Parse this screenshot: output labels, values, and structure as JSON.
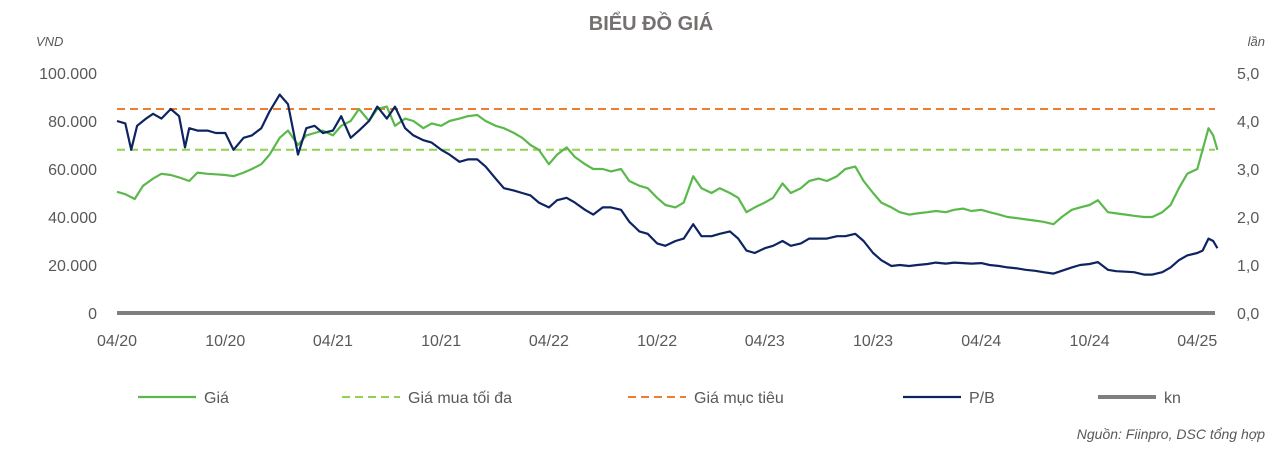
{
  "chart_data": {
    "type": "line",
    "title": "BIỂU ĐỒ GIÁ",
    "ylabel_left": "VND",
    "ylabel_right": "lần",
    "ylim_left": [
      0,
      100000
    ],
    "ylim_right": [
      0,
      5
    ],
    "y_ticks_left": [
      "0",
      "20.000",
      "40.000",
      "60.000",
      "80.000",
      "100.000"
    ],
    "y_ticks_right": [
      "0,0",
      "1,0",
      "2,0",
      "3,0",
      "4,0",
      "5,0"
    ],
    "x_ticks": [
      "04/20",
      "10/20",
      "04/21",
      "10/21",
      "04/22",
      "10/22",
      "04/23",
      "10/23",
      "04/24",
      "10/24",
      "04/25"
    ],
    "x_start": "2020-04",
    "x_end": "2025-05",
    "grid": false,
    "legend_position": "bottom",
    "series": [
      {
        "name": "Giá",
        "axis": "left",
        "color": "#5BB94C",
        "style": "solid",
        "points": [
          [
            "2020-04-01",
            50500
          ],
          [
            "2020-04-15",
            49500
          ],
          [
            "2020-05-01",
            47500
          ],
          [
            "2020-05-15",
            53000
          ],
          [
            "2020-06-01",
            56000
          ],
          [
            "2020-06-15",
            58000
          ],
          [
            "2020-07-01",
            57500
          ],
          [
            "2020-07-15",
            56500
          ],
          [
            "2020-08-01",
            55000
          ],
          [
            "2020-08-15",
            58500
          ],
          [
            "2020-09-01",
            58000
          ],
          [
            "2020-09-15",
            57800
          ],
          [
            "2020-10-01",
            57500
          ],
          [
            "2020-10-15",
            57000
          ],
          [
            "2020-11-01",
            58500
          ],
          [
            "2020-11-15",
            60000
          ],
          [
            "2020-12-01",
            62000
          ],
          [
            "2020-12-15",
            66000
          ],
          [
            "2021-01-01",
            73000
          ],
          [
            "2021-01-15",
            76000
          ],
          [
            "2021-02-01",
            70000
          ],
          [
            "2021-02-15",
            74000
          ],
          [
            "2021-03-01",
            75000
          ],
          [
            "2021-03-15",
            76000
          ],
          [
            "2021-04-01",
            74000
          ],
          [
            "2021-04-15",
            78000
          ],
          [
            "2021-05-01",
            80000
          ],
          [
            "2021-05-15",
            85000
          ],
          [
            "2021-06-01",
            80000
          ],
          [
            "2021-06-15",
            85000
          ],
          [
            "2021-07-01",
            86000
          ],
          [
            "2021-07-15",
            78000
          ],
          [
            "2021-08-01",
            81000
          ],
          [
            "2021-08-15",
            80000
          ],
          [
            "2021-09-01",
            77000
          ],
          [
            "2021-09-15",
            79000
          ],
          [
            "2021-10-01",
            78000
          ],
          [
            "2021-10-15",
            80000
          ],
          [
            "2021-11-01",
            81000
          ],
          [
            "2021-11-15",
            82000
          ],
          [
            "2021-12-01",
            82500
          ],
          [
            "2021-12-15",
            80000
          ],
          [
            "2022-01-01",
            78000
          ],
          [
            "2022-01-15",
            77000
          ],
          [
            "2022-02-01",
            75000
          ],
          [
            "2022-02-15",
            73000
          ],
          [
            "2022-03-01",
            70000
          ],
          [
            "2022-03-15",
            68000
          ],
          [
            "2022-04-01",
            62000
          ],
          [
            "2022-04-15",
            66000
          ],
          [
            "2022-05-01",
            69000
          ],
          [
            "2022-05-15",
            65000
          ],
          [
            "2022-06-01",
            62000
          ],
          [
            "2022-06-15",
            60000
          ],
          [
            "2022-07-01",
            60000
          ],
          [
            "2022-07-15",
            59000
          ],
          [
            "2022-08-01",
            60000
          ],
          [
            "2022-08-15",
            55000
          ],
          [
            "2022-09-01",
            53000
          ],
          [
            "2022-09-15",
            52000
          ],
          [
            "2022-10-01",
            48000
          ],
          [
            "2022-10-15",
            45000
          ],
          [
            "2022-11-01",
            44000
          ],
          [
            "2022-11-15",
            46000
          ],
          [
            "2022-12-01",
            57000
          ],
          [
            "2022-12-15",
            52000
          ],
          [
            "2023-01-01",
            50000
          ],
          [
            "2023-01-15",
            52000
          ],
          [
            "2023-02-01",
            50000
          ],
          [
            "2023-02-15",
            48000
          ],
          [
            "2023-03-01",
            42000
          ],
          [
            "2023-03-15",
            44000
          ],
          [
            "2023-04-01",
            46000
          ],
          [
            "2023-04-15",
            48000
          ],
          [
            "2023-05-01",
            54000
          ],
          [
            "2023-05-15",
            50000
          ],
          [
            "2023-06-01",
            52000
          ],
          [
            "2023-06-15",
            55000
          ],
          [
            "2023-07-01",
            56000
          ],
          [
            "2023-07-15",
            55000
          ],
          [
            "2023-08-01",
            57000
          ],
          [
            "2023-08-15",
            60000
          ],
          [
            "2023-09-01",
            61000
          ],
          [
            "2023-09-15",
            55000
          ],
          [
            "2023-10-01",
            50000
          ],
          [
            "2023-10-15",
            46000
          ],
          [
            "2023-11-01",
            44000
          ],
          [
            "2023-11-15",
            42000
          ],
          [
            "2023-12-01",
            41000
          ],
          [
            "2023-12-15",
            41500
          ],
          [
            "2024-01-01",
            42000
          ],
          [
            "2024-01-15",
            42500
          ],
          [
            "2024-02-01",
            42000
          ],
          [
            "2024-02-15",
            43000
          ],
          [
            "2024-03-01",
            43500
          ],
          [
            "2024-03-15",
            42500
          ],
          [
            "2024-04-01",
            43000
          ],
          [
            "2024-04-15",
            42000
          ],
          [
            "2024-05-01",
            41000
          ],
          [
            "2024-05-15",
            40000
          ],
          [
            "2024-06-01",
            39500
          ],
          [
            "2024-06-15",
            39000
          ],
          [
            "2024-07-01",
            38500
          ],
          [
            "2024-07-15",
            38000
          ],
          [
            "2024-08-01",
            37000
          ],
          [
            "2024-08-15",
            40000
          ],
          [
            "2024-09-01",
            43000
          ],
          [
            "2024-09-15",
            44000
          ],
          [
            "2024-10-01",
            45000
          ],
          [
            "2024-10-15",
            47000
          ],
          [
            "2024-11-01",
            42000
          ],
          [
            "2024-11-15",
            41500
          ],
          [
            "2024-12-01",
            41000
          ],
          [
            "2024-12-15",
            40500
          ],
          [
            "2025-01-01",
            40000
          ],
          [
            "2025-01-15",
            40000
          ],
          [
            "2025-02-01",
            42000
          ],
          [
            "2025-02-15",
            45000
          ],
          [
            "2025-03-01",
            52000
          ],
          [
            "2025-03-15",
            58000
          ],
          [
            "2025-04-01",
            60000
          ],
          [
            "2025-04-10",
            68000
          ],
          [
            "2025-04-20",
            77000
          ],
          [
            "2025-04-28",
            74000
          ],
          [
            "2025-05-05",
            68000
          ]
        ]
      },
      {
        "name": "Giá mua tối đa",
        "axis": "left",
        "color": "#92D050",
        "style": "dashed",
        "value": 68000
      },
      {
        "name": "Giá mục tiêu",
        "axis": "left",
        "color": "#ED7D31",
        "style": "dashed",
        "value": 85000
      },
      {
        "name": "P/B",
        "axis": "right",
        "color": "#0E2461",
        "style": "solid",
        "points": [
          [
            "2020-04-01",
            4.0
          ],
          [
            "2020-04-15",
            3.95
          ],
          [
            "2020-04-25",
            3.4
          ],
          [
            "2020-05-05",
            3.9
          ],
          [
            "2020-05-20",
            4.05
          ],
          [
            "2020-06-01",
            4.15
          ],
          [
            "2020-06-15",
            4.05
          ],
          [
            "2020-07-01",
            4.25
          ],
          [
            "2020-07-15",
            4.1
          ],
          [
            "2020-07-25",
            3.45
          ],
          [
            "2020-08-01",
            3.85
          ],
          [
            "2020-08-15",
            3.8
          ],
          [
            "2020-09-01",
            3.8
          ],
          [
            "2020-09-15",
            3.75
          ],
          [
            "2020-10-01",
            3.75
          ],
          [
            "2020-10-15",
            3.4
          ],
          [
            "2020-11-01",
            3.65
          ],
          [
            "2020-11-15",
            3.7
          ],
          [
            "2020-12-01",
            3.85
          ],
          [
            "2020-12-15",
            4.2
          ],
          [
            "2021-01-01",
            4.55
          ],
          [
            "2021-01-15",
            4.35
          ],
          [
            "2021-02-01",
            3.3
          ],
          [
            "2021-02-15",
            3.85
          ],
          [
            "2021-03-01",
            3.9
          ],
          [
            "2021-03-15",
            3.75
          ],
          [
            "2021-04-01",
            3.8
          ],
          [
            "2021-04-15",
            4.1
          ],
          [
            "2021-05-01",
            3.65
          ],
          [
            "2021-05-15",
            3.8
          ],
          [
            "2021-06-01",
            4.0
          ],
          [
            "2021-06-15",
            4.3
          ],
          [
            "2021-07-01",
            4.05
          ],
          [
            "2021-07-15",
            4.3
          ],
          [
            "2021-08-01",
            3.85
          ],
          [
            "2021-08-15",
            3.7
          ],
          [
            "2021-09-01",
            3.6
          ],
          [
            "2021-09-15",
            3.55
          ],
          [
            "2021-10-01",
            3.4
          ],
          [
            "2021-10-15",
            3.3
          ],
          [
            "2021-11-01",
            3.15
          ],
          [
            "2021-11-15",
            3.2
          ],
          [
            "2021-12-01",
            3.2
          ],
          [
            "2021-12-15",
            3.05
          ],
          [
            "2022-01-01",
            2.8
          ],
          [
            "2022-01-15",
            2.6
          ],
          [
            "2022-02-01",
            2.55
          ],
          [
            "2022-02-15",
            2.5
          ],
          [
            "2022-03-01",
            2.45
          ],
          [
            "2022-03-15",
            2.3
          ],
          [
            "2022-04-01",
            2.2
          ],
          [
            "2022-04-15",
            2.35
          ],
          [
            "2022-05-01",
            2.4
          ],
          [
            "2022-05-15",
            2.3
          ],
          [
            "2022-06-01",
            2.15
          ],
          [
            "2022-06-15",
            2.05
          ],
          [
            "2022-07-01",
            2.2
          ],
          [
            "2022-07-15",
            2.2
          ],
          [
            "2022-08-01",
            2.15
          ],
          [
            "2022-08-15",
            1.9
          ],
          [
            "2022-09-01",
            1.7
          ],
          [
            "2022-09-15",
            1.65
          ],
          [
            "2022-10-01",
            1.45
          ],
          [
            "2022-10-15",
            1.4
          ],
          [
            "2022-11-01",
            1.5
          ],
          [
            "2022-11-15",
            1.55
          ],
          [
            "2022-12-01",
            1.85
          ],
          [
            "2022-12-15",
            1.6
          ],
          [
            "2023-01-01",
            1.6
          ],
          [
            "2023-01-15",
            1.65
          ],
          [
            "2023-02-01",
            1.7
          ],
          [
            "2023-02-15",
            1.55
          ],
          [
            "2023-03-01",
            1.3
          ],
          [
            "2023-03-15",
            1.25
          ],
          [
            "2023-04-01",
            1.35
          ],
          [
            "2023-04-15",
            1.4
          ],
          [
            "2023-05-01",
            1.5
          ],
          [
            "2023-05-15",
            1.4
          ],
          [
            "2023-06-01",
            1.45
          ],
          [
            "2023-06-15",
            1.55
          ],
          [
            "2023-07-01",
            1.55
          ],
          [
            "2023-07-15",
            1.55
          ],
          [
            "2023-08-01",
            1.6
          ],
          [
            "2023-08-15",
            1.6
          ],
          [
            "2023-09-01",
            1.65
          ],
          [
            "2023-09-15",
            1.5
          ],
          [
            "2023-10-01",
            1.25
          ],
          [
            "2023-10-15",
            1.1
          ],
          [
            "2023-11-01",
            0.98
          ],
          [
            "2023-11-15",
            1.0
          ],
          [
            "2023-12-01",
            0.98
          ],
          [
            "2023-12-15",
            1.0
          ],
          [
            "2024-01-01",
            1.02
          ],
          [
            "2024-01-15",
            1.05
          ],
          [
            "2024-02-01",
            1.03
          ],
          [
            "2024-02-15",
            1.05
          ],
          [
            "2024-03-01",
            1.04
          ],
          [
            "2024-03-15",
            1.03
          ],
          [
            "2024-04-01",
            1.04
          ],
          [
            "2024-04-15",
            1.0
          ],
          [
            "2024-05-01",
            0.98
          ],
          [
            "2024-05-15",
            0.95
          ],
          [
            "2024-06-01",
            0.93
          ],
          [
            "2024-06-15",
            0.9
          ],
          [
            "2024-07-01",
            0.88
          ],
          [
            "2024-07-15",
            0.85
          ],
          [
            "2024-08-01",
            0.82
          ],
          [
            "2024-08-15",
            0.88
          ],
          [
            "2024-09-01",
            0.95
          ],
          [
            "2024-09-15",
            1.0
          ],
          [
            "2024-10-01",
            1.02
          ],
          [
            "2024-10-15",
            1.06
          ],
          [
            "2024-11-01",
            0.9
          ],
          [
            "2024-11-15",
            0.87
          ],
          [
            "2024-12-01",
            0.86
          ],
          [
            "2024-12-15",
            0.85
          ],
          [
            "2025-01-01",
            0.8
          ],
          [
            "2025-01-15",
            0.8
          ],
          [
            "2025-02-01",
            0.85
          ],
          [
            "2025-02-15",
            0.95
          ],
          [
            "2025-03-01",
            1.1
          ],
          [
            "2025-03-15",
            1.2
          ],
          [
            "2025-04-01",
            1.25
          ],
          [
            "2025-04-10",
            1.3
          ],
          [
            "2025-04-20",
            1.55
          ],
          [
            "2025-04-28",
            1.5
          ],
          [
            "2025-05-05",
            1.35
          ]
        ]
      },
      {
        "name": "kn",
        "axis": "left",
        "color": "#7F7F7F",
        "style": "solid",
        "value": 0
      }
    ]
  },
  "source": "Nguồn: Fiinpro, DSC tổng hợp"
}
